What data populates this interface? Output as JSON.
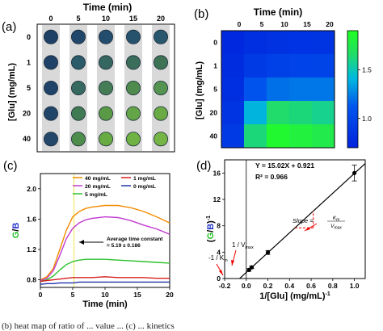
{
  "panels": {
    "a": {
      "label": "(a)",
      "top_title": "Time (min)",
      "left_title": "[Glu] (mg/mL)",
      "time_ticks": [
        "0",
        "5",
        "10",
        "15",
        "20"
      ],
      "conc_ticks": [
        "0",
        "1",
        "5",
        "20",
        "40"
      ],
      "well_colors": [
        [
          "#1e3f66",
          "#21476a",
          "#244c6c",
          "#26526e",
          "#28566d"
        ],
        [
          "#1f4067",
          "#2b5a68",
          "#35665f",
          "#3a6d5a",
          "#3d7255"
        ],
        [
          "#1f4268",
          "#366a60",
          "#447d55",
          "#4e8b4d",
          "#549350"
        ],
        [
          "#214568",
          "#3f7a52",
          "#5a9a47",
          "#64a547",
          "#69aa45"
        ],
        [
          "#24486a",
          "#4d8c4b",
          "#68ab42",
          "#6fb244",
          "#74b546"
        ]
      ]
    },
    "b": {
      "label": "(b)",
      "top_title": "Time (min)",
      "left_title": "[Glu] (mg/mL)",
      "time_ticks": [
        "0",
        "5",
        "10",
        "15",
        "20"
      ],
      "conc_ticks": [
        "0",
        "1",
        "5",
        "20",
        "40"
      ],
      "colorbar_ticks": [
        "1.0",
        "1.5"
      ]
    },
    "c": {
      "label": "(c)",
      "annotation_line1": "Average time constant",
      "annotation_line2": "= 5.19 ± 0.186"
    },
    "d": {
      "label": "(d)",
      "equation": "Y = 15.02X + 0.921",
      "r2": "R² = 0.966",
      "vmax_label": "1 / V",
      "vmax_sub": "max",
      "km_label": "-1 / K",
      "km_sub": "m",
      "slope_label": "Slope =",
      "slope_num": "K",
      "slope_num_sub": "m",
      "slope_den": "V",
      "slope_den_sub": "max"
    }
  },
  "caption": "(b) heat map of ratio of ... value ... (c) ... kinetics",
  "chart_data": [
    {
      "type": "heatmap",
      "panel": "b",
      "xlabel": "Time (min)",
      "ylabel": "[Glu] (mg/mL)",
      "x": [
        0,
        5,
        10,
        15,
        20
      ],
      "y": [
        0,
        1,
        5,
        20,
        40
      ],
      "values": [
        [
          0.76,
          0.8,
          0.83,
          0.84,
          0.85
        ],
        [
          0.78,
          0.9,
          0.95,
          0.97,
          0.98
        ],
        [
          0.8,
          1.1,
          1.2,
          1.22,
          1.22
        ],
        [
          0.85,
          1.4,
          1.65,
          1.62,
          1.58
        ],
        [
          0.9,
          1.62,
          1.85,
          1.8,
          1.75
        ]
      ],
      "colorbar_range": [
        0.7,
        1.9
      ],
      "colormap": [
        "#0022dd",
        "#00ccff",
        "#2ee85a",
        "#22ff22"
      ]
    },
    {
      "type": "line",
      "panel": "c",
      "xlabel": "Time (min)",
      "ylabel": "G/B",
      "xlim": [
        0,
        20
      ],
      "ylim": [
        0.7,
        2.2
      ],
      "xticks": [
        0,
        5,
        10,
        15,
        20
      ],
      "yticks": [
        0.8,
        1.2,
        1.6,
        2.0
      ],
      "marker_line_x": 5.19,
      "legend": "top-right",
      "series": [
        {
          "name": "40 mg/mL",
          "color": "#f28c00",
          "x": [
            0,
            1,
            2,
            3,
            4,
            5,
            6,
            7,
            8,
            10,
            12,
            14,
            16,
            18,
            20
          ],
          "y": [
            0.8,
            0.84,
            0.95,
            1.2,
            1.45,
            1.63,
            1.7,
            1.74,
            1.76,
            1.78,
            1.78,
            1.75,
            1.7,
            1.63,
            1.55
          ]
        },
        {
          "name": "20 mg/mL",
          "color": "#c23ad1",
          "x": [
            0,
            1,
            2,
            3,
            4,
            5,
            6,
            7,
            8,
            10,
            12,
            14,
            16,
            18,
            20
          ],
          "y": [
            0.79,
            0.82,
            0.92,
            1.12,
            1.34,
            1.48,
            1.55,
            1.59,
            1.61,
            1.63,
            1.62,
            1.58,
            1.52,
            1.47,
            1.4
          ]
        },
        {
          "name": "5 mg/mL",
          "color": "#2cc12c",
          "x": [
            0,
            1,
            2,
            3,
            4,
            5,
            6,
            7,
            8,
            10,
            12,
            14,
            16,
            18,
            20
          ],
          "y": [
            0.78,
            0.8,
            0.85,
            0.93,
            1.0,
            1.04,
            1.06,
            1.07,
            1.07,
            1.07,
            1.06,
            1.05,
            1.04,
            1.03,
            1.02
          ]
        },
        {
          "name": "1 mg/mL",
          "color": "#d62020",
          "x": [
            0,
            1,
            2,
            3,
            4,
            5,
            6,
            7,
            8,
            10,
            12,
            14,
            16,
            18,
            20
          ],
          "y": [
            0.78,
            0.79,
            0.8,
            0.81,
            0.82,
            0.83,
            0.83,
            0.83,
            0.83,
            0.84,
            0.83,
            0.83,
            0.83,
            0.82,
            0.82
          ]
        },
        {
          "name": "0 mg/mL",
          "color": "#2233aa",
          "x": [
            0,
            1,
            2,
            3,
            4,
            5,
            6,
            7,
            8,
            10,
            12,
            14,
            16,
            18,
            20
          ],
          "y": [
            0.74,
            0.75,
            0.75,
            0.76,
            0.76,
            0.76,
            0.77,
            0.77,
            0.77,
            0.77,
            0.77,
            0.77,
            0.77,
            0.77,
            0.77
          ]
        }
      ]
    },
    {
      "type": "scatter",
      "panel": "d",
      "xlabel": "1/[Glu] (mg/mL)",
      "xlabel_sup": "-1",
      "ylabel": "(G/B)",
      "ylabel_sup": "-1",
      "xlim": [
        -0.2,
        1.1
      ],
      "ylim": [
        0,
        18
      ],
      "xticks": [
        -0.2,
        0,
        0.2,
        0.4,
        0.6,
        0.8,
        1.0
      ],
      "xticklabels": [
        "-0.2",
        "0.0",
        "0.2",
        "0.4",
        "0.6",
        "0.8",
        "1.0"
      ],
      "yticks": [
        0,
        4,
        8,
        12,
        16
      ],
      "points": [
        {
          "x": 0.025,
          "y": 1.3,
          "err": 0.2
        },
        {
          "x": 0.05,
          "y": 1.7,
          "err": 0.2
        },
        {
          "x": 0.2,
          "y": 3.95,
          "err": 0.3
        },
        {
          "x": 1.0,
          "y": 16.0,
          "err": 1.2
        }
      ],
      "fit": {
        "slope": 15.02,
        "intercept": 0.921,
        "x_range": [
          -0.061,
          1.1
        ]
      }
    }
  ]
}
